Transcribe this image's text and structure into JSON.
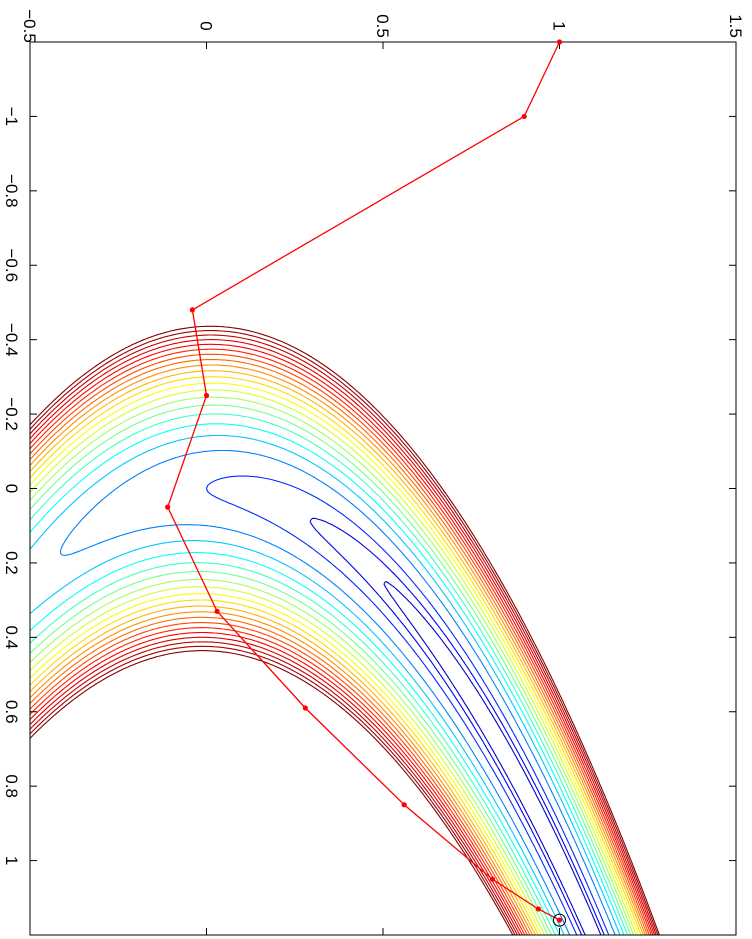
{
  "chart_data": {
    "type": "contour",
    "title": "",
    "xlabel": "",
    "ylabel": "",
    "rotation": "rotated 90 degrees clockwise",
    "x_axis": {
      "position": "top",
      "range": [
        -0.5,
        1.5
      ],
      "ticks": [
        -0.5,
        0,
        0.5,
        1,
        1.5
      ],
      "tick_labels": [
        "−0.5",
        "0",
        "0.5",
        "1",
        "1.5"
      ]
    },
    "y_axis": {
      "position": "left",
      "range": [
        -1.2,
        1.2
      ],
      "ticks": [
        -1,
        -0.8,
        -0.6,
        -0.4,
        -0.2,
        0,
        0.2,
        0.4,
        0.6,
        0.8,
        1
      ],
      "tick_labels": [
        "−1",
        "−0.8",
        "−0.6",
        "−0.4",
        "−0.2",
        "0",
        "0.2",
        "0.4",
        "0.6",
        "0.8",
        "1"
      ]
    },
    "contour_levels": [
      0.25,
      0.5,
      1,
      2,
      3,
      4,
      5,
      6,
      7,
      8,
      9,
      10,
      11,
      12,
      13,
      14,
      15,
      16,
      17,
      18,
      19,
      20
    ],
    "contour_colormap": "jet",
    "grid": false,
    "series": [
      {
        "color": "#ff0000",
        "points": [
          {
            "x": 1.0,
            "y": -1.2
          },
          {
            "x": 0.9,
            "y": -1.0
          },
          {
            "x": -0.04,
            "y": -0.48
          },
          {
            "x": 0.0,
            "y": -0.25
          },
          {
            "x": -0.11,
            "y": 0.05
          },
          {
            "x": 0.03,
            "y": 0.33
          },
          {
            "x": 0.28,
            "y": 0.59
          },
          {
            "x": 0.56,
            "y": 0.85
          },
          {
            "x": 0.81,
            "y": 1.05
          },
          {
            "x": 0.94,
            "y": 1.13
          },
          {
            "x": 1.0,
            "y": 1.16
          }
        ]
      }
    ],
    "optimum_marker": {
      "x": 1.0,
      "y": 1.16,
      "shape": "circle"
    }
  }
}
